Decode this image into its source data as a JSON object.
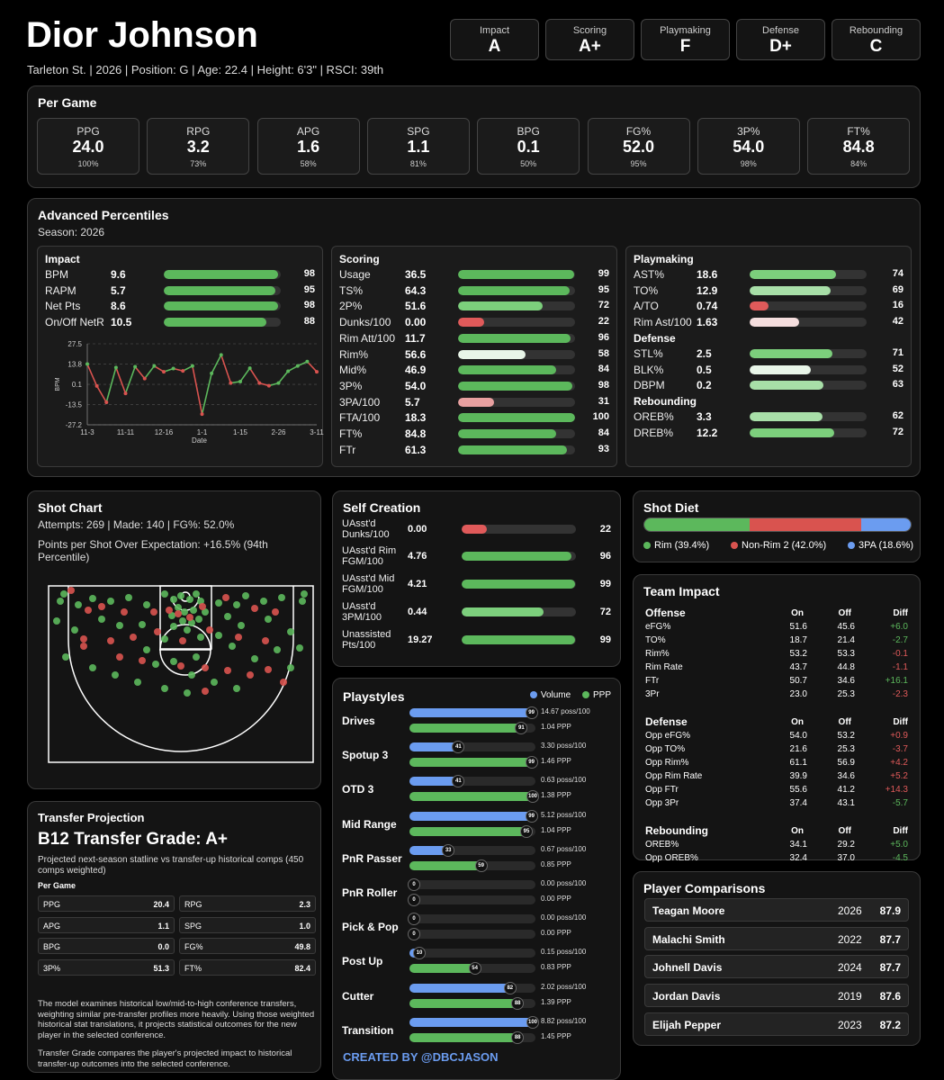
{
  "header": {
    "name": "Dior Johnson",
    "info": "Tarleton St. | 2026 | Position: G | Age: 22.4 | Height: 6'3\" | RSCI: 39th",
    "grades": [
      {
        "label": "Impact",
        "value": "A"
      },
      {
        "label": "Scoring",
        "value": "A+"
      },
      {
        "label": "Playmaking",
        "value": "F"
      },
      {
        "label": "Defense",
        "value": "D+"
      },
      {
        "label": "Rebounding",
        "value": "C"
      }
    ]
  },
  "per_game": {
    "title": "Per Game",
    "stats": [
      {
        "label": "PPG",
        "value": "24.0",
        "pct": "100%"
      },
      {
        "label": "RPG",
        "value": "3.2",
        "pct": "73%"
      },
      {
        "label": "APG",
        "value": "1.6",
        "pct": "58%"
      },
      {
        "label": "SPG",
        "value": "1.1",
        "pct": "81%"
      },
      {
        "label": "BPG",
        "value": "0.1",
        "pct": "50%"
      },
      {
        "label": "FG%",
        "value": "52.0",
        "pct": "95%"
      },
      {
        "label": "3P%",
        "value": "54.0",
        "pct": "98%"
      },
      {
        "label": "FT%",
        "value": "84.8",
        "pct": "84%"
      }
    ]
  },
  "advanced": {
    "title": "Advanced Percentiles",
    "season": "Season: 2026",
    "impact": {
      "title": "Impact",
      "rows": [
        {
          "label": "BPM",
          "value": "9.6",
          "pct": 98
        },
        {
          "label": "RAPM",
          "value": "5.7",
          "pct": 95
        },
        {
          "label": "Net Pts",
          "value": "8.6",
          "pct": 98
        },
        {
          "label": "On/Off NetR",
          "value": "10.5",
          "pct": 88
        }
      ]
    },
    "scoring": {
      "title": "Scoring",
      "rows": [
        {
          "label": "Usage",
          "value": "36.5",
          "pct": 99
        },
        {
          "label": "TS%",
          "value": "64.3",
          "pct": 95
        },
        {
          "label": "2P%",
          "value": "51.6",
          "pct": 72
        },
        {
          "label": "Dunks/100",
          "value": "0.00",
          "pct": 22
        },
        {
          "label": "Rim Att/100",
          "value": "11.7",
          "pct": 96
        },
        {
          "label": "Rim%",
          "value": "56.6",
          "pct": 58
        },
        {
          "label": "Mid%",
          "value": "46.9",
          "pct": 84
        },
        {
          "label": "3P%",
          "value": "54.0",
          "pct": 98
        },
        {
          "label": "3PA/100",
          "value": "5.7",
          "pct": 31
        },
        {
          "label": "FTA/100",
          "value": "18.3",
          "pct": 100
        },
        {
          "label": "FT%",
          "value": "84.8",
          "pct": 84
        },
        {
          "label": "FTr",
          "value": "61.3",
          "pct": 93
        }
      ]
    },
    "playmaking": {
      "title": "Playmaking",
      "rows": [
        {
          "label": "AST%",
          "value": "18.6",
          "pct": 74
        },
        {
          "label": "TO%",
          "value": "12.9",
          "pct": 69
        },
        {
          "label": "A/TO",
          "value": "0.74",
          "pct": 16
        },
        {
          "label": "Rim Ast/100",
          "value": "1.63",
          "pct": 42
        }
      ]
    },
    "defense": {
      "title": "Defense",
      "rows": [
        {
          "label": "STL%",
          "value": "2.5",
          "pct": 71
        },
        {
          "label": "BLK%",
          "value": "0.5",
          "pct": 52
        },
        {
          "label": "DBPM",
          "value": "0.2",
          "pct": 63
        }
      ]
    },
    "rebounding": {
      "title": "Rebounding",
      "rows": [
        {
          "label": "OREB%",
          "value": "3.3",
          "pct": 62
        },
        {
          "label": "DREB%",
          "value": "12.2",
          "pct": 72
        }
      ]
    }
  },
  "chart_data": {
    "type": "line",
    "title": "",
    "xlabel": "Date",
    "ylabel": "BPM",
    "x_ticks": [
      "11-3",
      "11-11",
      "12-16",
      "1-1",
      "1-15",
      "2-26",
      "3-11"
    ],
    "y_ticks": [
      "27.5",
      "13.8",
      "0.1",
      "-13.5",
      "-27.2"
    ],
    "ylim": [
      -27.2,
      27.5
    ],
    "grid": true,
    "series": [
      {
        "values": [
          13.8,
          -1.0,
          -12.0,
          11.5,
          -6.0,
          12.0,
          4.0,
          12.5,
          8.6,
          10.8,
          9.2,
          12.5,
          -20.0,
          7.5,
          20.0,
          1.0,
          2.0,
          11.0,
          1.0,
          -0.8,
          1.0,
          9.0,
          12.5,
          15.5,
          8.6
        ]
      }
    ]
  },
  "shot_chart": {
    "title": "Shot Chart",
    "attempts": "Attempts: 269 | Made: 140 | FG%: 52.0%",
    "ppse": "Points per Shot Over Expectation: +16.5% (94th Percentile)"
  },
  "self_creation": {
    "title": "Self Creation",
    "rows": [
      {
        "label": "UAsst'd Dunks/100",
        "value": "0.00",
        "pct": 22
      },
      {
        "label": "UAsst'd Rim FGM/100",
        "value": "4.76",
        "pct": 96
      },
      {
        "label": "UAsst'd Mid FGM/100",
        "value": "4.21",
        "pct": 99
      },
      {
        "label": "UAsst'd 3PM/100",
        "value": "0.44",
        "pct": 72
      },
      {
        "label": "Unassisted Pts/100",
        "value": "19.27",
        "pct": 99
      }
    ]
  },
  "shot_diet": {
    "title": "Shot Diet",
    "segments": [
      {
        "label": "Rim (39.4%)",
        "value": 39.4,
        "color": "#5cb85c"
      },
      {
        "label": "Non-Rim 2 (42.0%)",
        "value": 42.0,
        "color": "#d9534f"
      },
      {
        "label": "3PA (18.6%)",
        "value": 18.6,
        "color": "#6b9cf0"
      }
    ]
  },
  "team_impact": {
    "title": "Team Impact",
    "sections": [
      {
        "title": "Offense",
        "on": "On",
        "off": "Off",
        "diff": "Diff",
        "rows": [
          {
            "label": "eFG%",
            "on": "51.6",
            "off": "45.6",
            "diff": "+6.0",
            "good": true
          },
          {
            "label": "TO%",
            "on": "18.7",
            "off": "21.4",
            "diff": "-2.7",
            "good": true
          },
          {
            "label": "Rim%",
            "on": "53.2",
            "off": "53.3",
            "diff": "-0.1",
            "good": false
          },
          {
            "label": "Rim Rate",
            "on": "43.7",
            "off": "44.8",
            "diff": "-1.1",
            "good": false
          },
          {
            "label": "FTr",
            "on": "50.7",
            "off": "34.6",
            "diff": "+16.1",
            "good": true
          },
          {
            "label": "3Pr",
            "on": "23.0",
            "off": "25.3",
            "diff": "-2.3",
            "good": false
          }
        ]
      },
      {
        "title": "Defense",
        "on": "On",
        "off": "Off",
        "diff": "Diff",
        "rows": [
          {
            "label": "Opp eFG%",
            "on": "54.0",
            "off": "53.2",
            "diff": "+0.9",
            "good": false
          },
          {
            "label": "Opp TO%",
            "on": "21.6",
            "off": "25.3",
            "diff": "-3.7",
            "good": false
          },
          {
            "label": "Opp Rim%",
            "on": "61.1",
            "off": "56.9",
            "diff": "+4.2",
            "good": false
          },
          {
            "label": "Opp Rim Rate",
            "on": "39.9",
            "off": "34.6",
            "diff": "+5.2",
            "good": false
          },
          {
            "label": "Opp FTr",
            "on": "55.6",
            "off": "41.2",
            "diff": "+14.3",
            "good": false
          },
          {
            "label": "Opp 3Pr",
            "on": "37.4",
            "off": "43.1",
            "diff": "-5.7",
            "good": true
          }
        ]
      },
      {
        "title": "Rebounding",
        "on": "On",
        "off": "Off",
        "diff": "Diff",
        "rows": [
          {
            "label": "OREB%",
            "on": "34.1",
            "off": "29.2",
            "diff": "+5.0",
            "good": true
          },
          {
            "label": "Opp OREB%",
            "on": "32.4",
            "off": "37.0",
            "diff": "-4.5",
            "good": true
          }
        ]
      }
    ]
  },
  "playstyles": {
    "title": "Playstyles",
    "legend_volume": "Volume",
    "legend_ppp": "PPP",
    "rows": [
      {
        "name": "Drives",
        "vol": 99,
        "vol_text": "14.67 poss/100",
        "ppp": 91,
        "ppp_text": "1.04 PPP"
      },
      {
        "name": "Spotup 3",
        "vol": 41,
        "vol_text": "3.30 poss/100",
        "ppp": 99,
        "ppp_text": "1.46 PPP"
      },
      {
        "name": "OTD 3",
        "vol": 41,
        "vol_text": "0.63 poss/100",
        "ppp": 100,
        "ppp_text": "1.38 PPP"
      },
      {
        "name": "Mid Range",
        "vol": 99,
        "vol_text": "5.12 poss/100",
        "ppp": 95,
        "ppp_text": "1.04 PPP"
      },
      {
        "name": "PnR Passer",
        "vol": 33,
        "vol_text": "0.67 poss/100",
        "ppp": 59,
        "ppp_text": "0.85 PPP"
      },
      {
        "name": "PnR Roller",
        "vol": 0,
        "vol_text": "0.00 poss/100",
        "ppp": 0,
        "ppp_text": "0.00 PPP"
      },
      {
        "name": "Pick & Pop",
        "vol": 0,
        "vol_text": "0.00 poss/100",
        "ppp": 0,
        "ppp_text": "0.00 PPP"
      },
      {
        "name": "Post Up",
        "vol": 10,
        "vol_text": "0.15 poss/100",
        "ppp": 54,
        "ppp_text": "0.83 PPP"
      },
      {
        "name": "Cutter",
        "vol": 82,
        "vol_text": "2.02 poss/100",
        "ppp": 88,
        "ppp_text": "1.39 PPP"
      },
      {
        "name": "Transition",
        "vol": 100,
        "vol_text": "8.82 poss/100",
        "ppp": 88,
        "ppp_text": "1.45 PPP"
      }
    ],
    "credit": "CREATED BY @DBCJASON"
  },
  "transfer": {
    "title": "Transfer Projection",
    "grade": "B12 Transfer Grade: A+",
    "desc": "Projected next-season statline vs transfer-up historical comps (450 comps weighted)",
    "per_game_label": "Per Game",
    "stats": [
      {
        "label": "PPG",
        "value": "20.4"
      },
      {
        "label": "RPG",
        "value": "2.3"
      },
      {
        "label": "APG",
        "value": "1.1"
      },
      {
        "label": "SPG",
        "value": "1.0"
      },
      {
        "label": "BPG",
        "value": "0.0"
      },
      {
        "label": "FG%",
        "value": "49.8"
      },
      {
        "label": "3P%",
        "value": "51.3"
      },
      {
        "label": "FT%",
        "value": "82.4"
      }
    ],
    "note1": "The model examines historical low/mid-to-high conference transfers, weighting similar pre-transfer profiles more heavily. Using those weighted historical stat translations, it projects statistical outcomes for the new player in the selected conference.",
    "note2": "Transfer Grade compares the player's projected impact to historical transfer-up outcomes into the selected conference."
  },
  "comparisons": {
    "title": "Player Comparisons",
    "rows": [
      {
        "name": "Teagan Moore",
        "year": "2026",
        "score": "87.9"
      },
      {
        "name": "Malachi Smith",
        "year": "2022",
        "score": "87.7"
      },
      {
        "name": "Johnell Davis",
        "year": "2024",
        "score": "87.7"
      },
      {
        "name": "Jordan Davis",
        "year": "2019",
        "score": "87.6"
      },
      {
        "name": "Elijah Pepper",
        "year": "2023",
        "score": "87.2"
      }
    ]
  },
  "colors": {
    "green_strong": "#5cb85c",
    "green_mid": "#7ccf7c",
    "green_light": "#a8dfa8",
    "white_light": "#e8f5e8",
    "red_light": "#e8a0a0",
    "red": "#e05a5a",
    "blue": "#6b9cf0"
  }
}
